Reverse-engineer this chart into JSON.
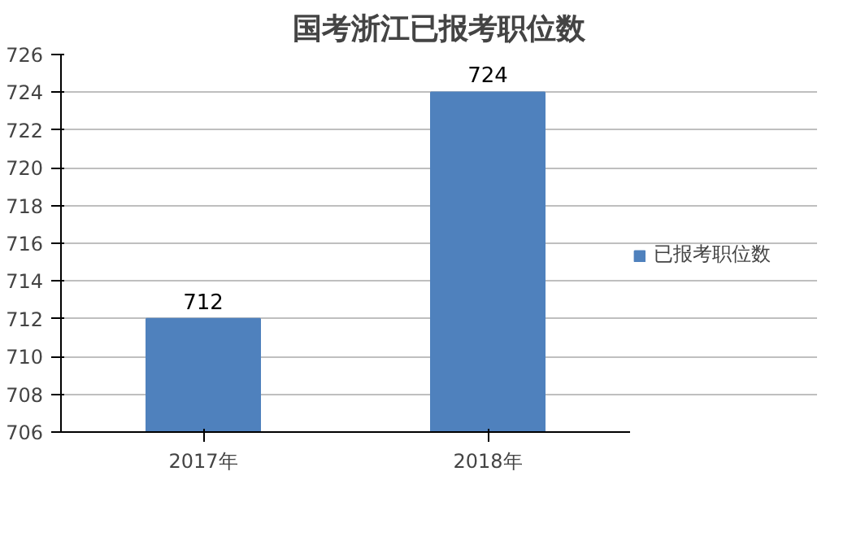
{
  "chart_data": {
    "type": "bar",
    "title": "国考浙江已报考职位数",
    "categories": [
      "2017年",
      "2018年"
    ],
    "series": [
      {
        "name": "已报考职位数",
        "color": "#4f81bd",
        "values": [
          712,
          724
        ]
      }
    ],
    "ylim": [
      706,
      726
    ],
    "yticks": [
      706,
      708,
      710,
      712,
      714,
      716,
      718,
      720,
      722,
      724,
      726
    ],
    "grid": "y",
    "legend": "right",
    "data_labels": true
  }
}
